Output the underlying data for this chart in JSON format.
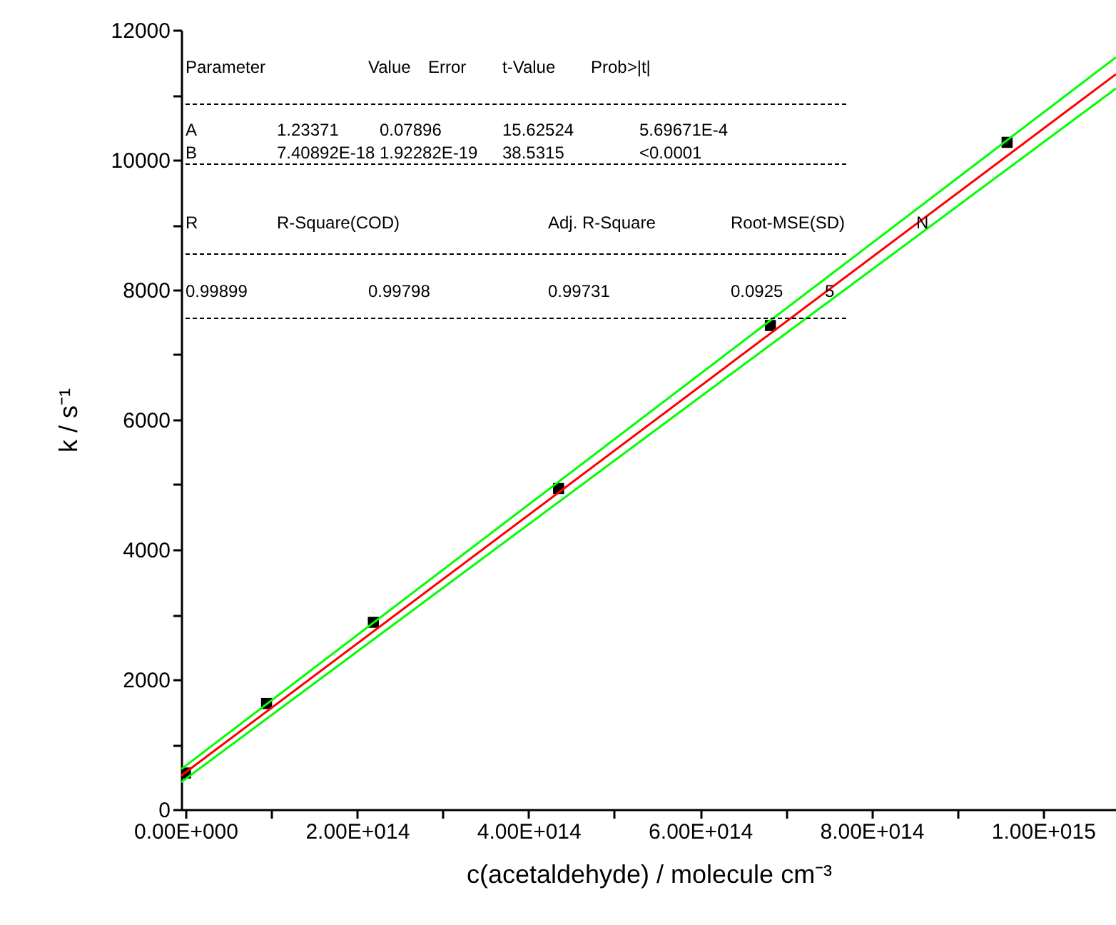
{
  "chart_data": {
    "type": "scatter",
    "xlabel": "c(acetaldehyde) / molecule cm⁻³",
    "ylabel": "k / s⁻¹",
    "marker": "square",
    "grid": false,
    "xlim": [
      -5000000000000.0,
      1085000000000000.0
    ],
    "xticks": [
      {
        "value": 0,
        "label": "0.00E+000"
      },
      {
        "value": 100000000000000.0,
        "label": null
      },
      {
        "value": 200000000000000.0,
        "label": "2.00E+014"
      },
      {
        "value": 300000000000000.0,
        "label": null
      },
      {
        "value": 400000000000000.0,
        "label": "4.00E+014"
      },
      {
        "value": 500000000000000.0,
        "label": null
      },
      {
        "value": 600000000000000.0,
        "label": "6.00E+014"
      },
      {
        "value": 700000000000000.0,
        "label": null
      },
      {
        "value": 800000000000000.0,
        "label": "8.00E+014"
      },
      {
        "value": 900000000000000.0,
        "label": null
      },
      {
        "value": 1000000000000000.0,
        "label": "1.00E+015"
      }
    ],
    "ylim": [
      0,
      12000
    ],
    "yticks": [
      0,
      {
        "value": 1000,
        "label": null
      },
      2000,
      {
        "value": 3000,
        "label": null
      },
      4000,
      {
        "value": 5000,
        "label": null
      },
      6000,
      {
        "value": 7000,
        "label": null
      },
      8000,
      {
        "value": 9000,
        "label": null
      },
      10000,
      {
        "value": 11000,
        "label": null
      },
      12000
    ],
    "series": [
      {
        "color": "#000000",
        "x": [
          0,
          94500000000000.0,
          219000000000000.0,
          435000000000000.0,
          682000000000000.0,
          958000000000000.0
        ],
        "values": [
          560,
          1630,
          2880,
          4940,
          7450,
          10270
        ]
      },
      {
        "type": "line",
        "marker": "none",
        "color": "#ff0000",
        "x": [
          -5000000000000.0,
          1085000000000000.0
        ],
        "values": [
          520,
          11320
        ]
      },
      {
        "type": "line",
        "marker": "none",
        "color": "#00ff00",
        "x": [
          -5000000000000.0,
          1085000000000000.0
        ],
        "values": [
          620,
          11580
        ]
      },
      {
        "type": "line",
        "marker": "none",
        "color": "#00ff00",
        "x": [
          -5000000000000.0,
          1085000000000000.0
        ],
        "values": [
          420,
          11100
        ]
      }
    ],
    "annotations": [
      "Parameter",
      "Value",
      "Error",
      "t-Value",
      "Prob>|t|",
      "A",
      "1.23371",
      "0.07896",
      "15.62524",
      "5.69671E-4",
      "B",
      "7.40892E-18",
      "1.92282E-19",
      "38.5315",
      "<0.0001",
      "R",
      "R-Square(COD)",
      "Adj. R-Square",
      "Root-MSE(SD)",
      "N",
      "0.99899",
      "0.99798",
      "0.99731",
      "0.0925",
      "5"
    ]
  }
}
